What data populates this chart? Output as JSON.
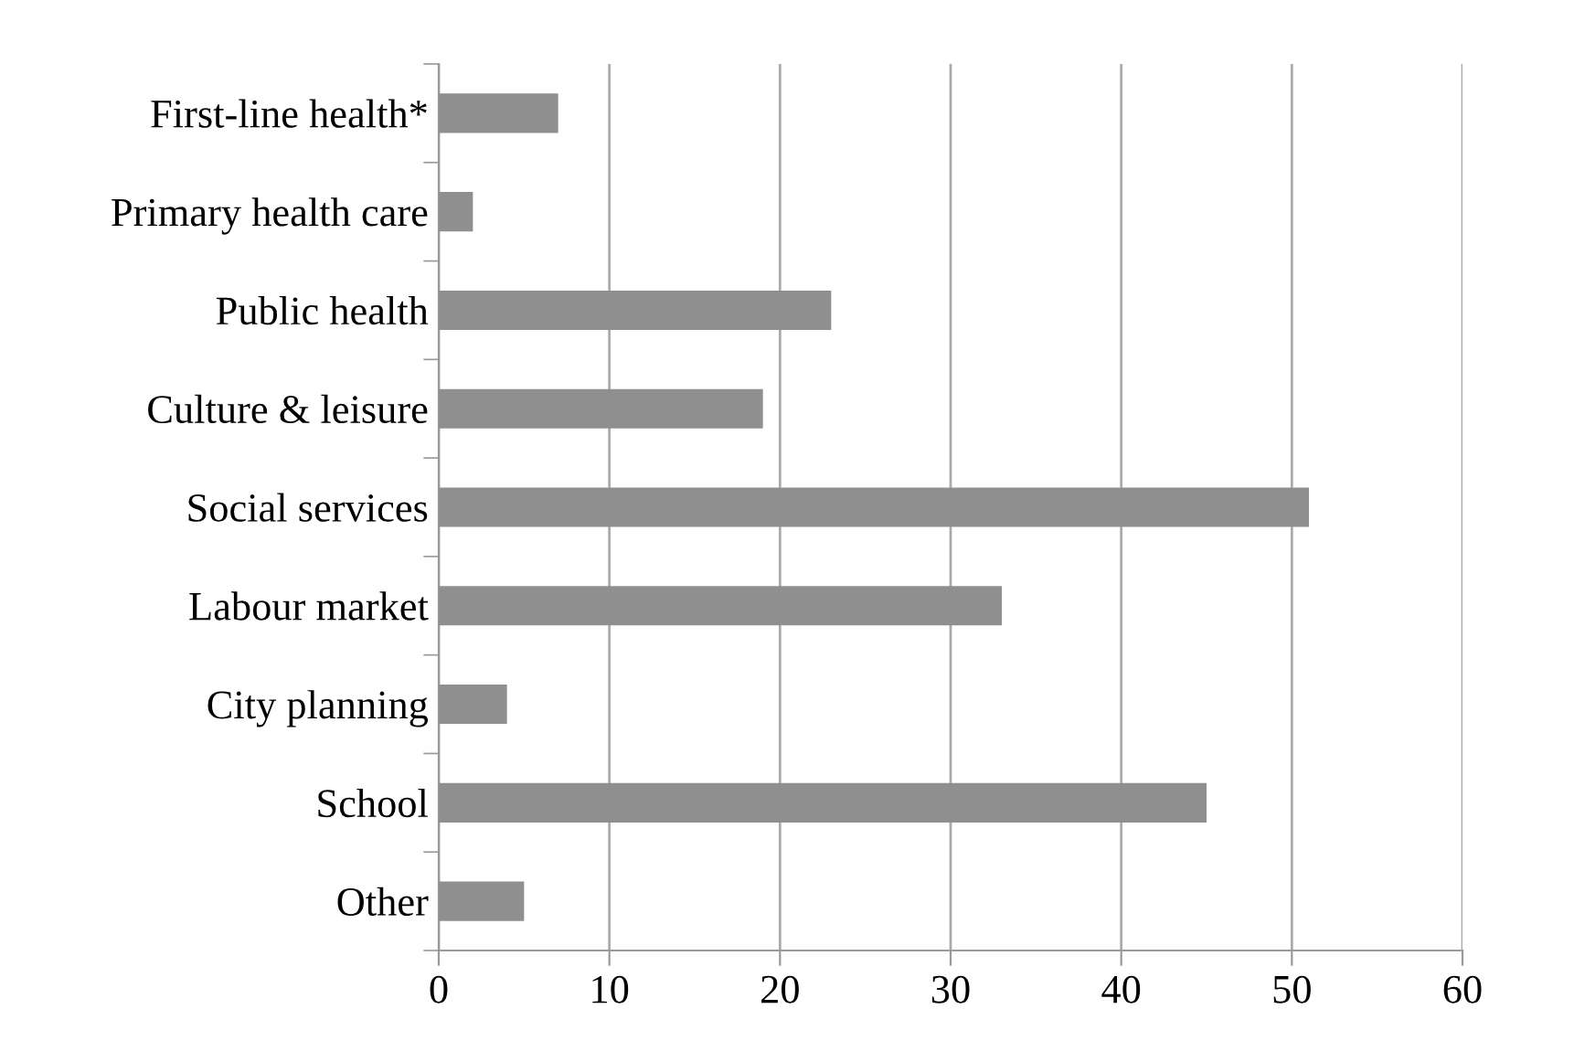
{
  "chart_data": {
    "type": "bar",
    "orientation": "horizontal",
    "categories": [
      "First-line health*",
      "Primary health care",
      "Public health",
      "Culture & leisure",
      "Social services",
      "Labour market",
      "City planning",
      "School",
      "Other"
    ],
    "values": [
      7,
      2,
      23,
      19,
      51,
      33,
      4,
      45,
      5
    ],
    "color": "#8f8f8f",
    "xlim": [
      0,
      60
    ],
    "xticks": [
      0,
      10,
      20,
      30,
      40,
      50,
      60
    ],
    "grid": "x"
  }
}
